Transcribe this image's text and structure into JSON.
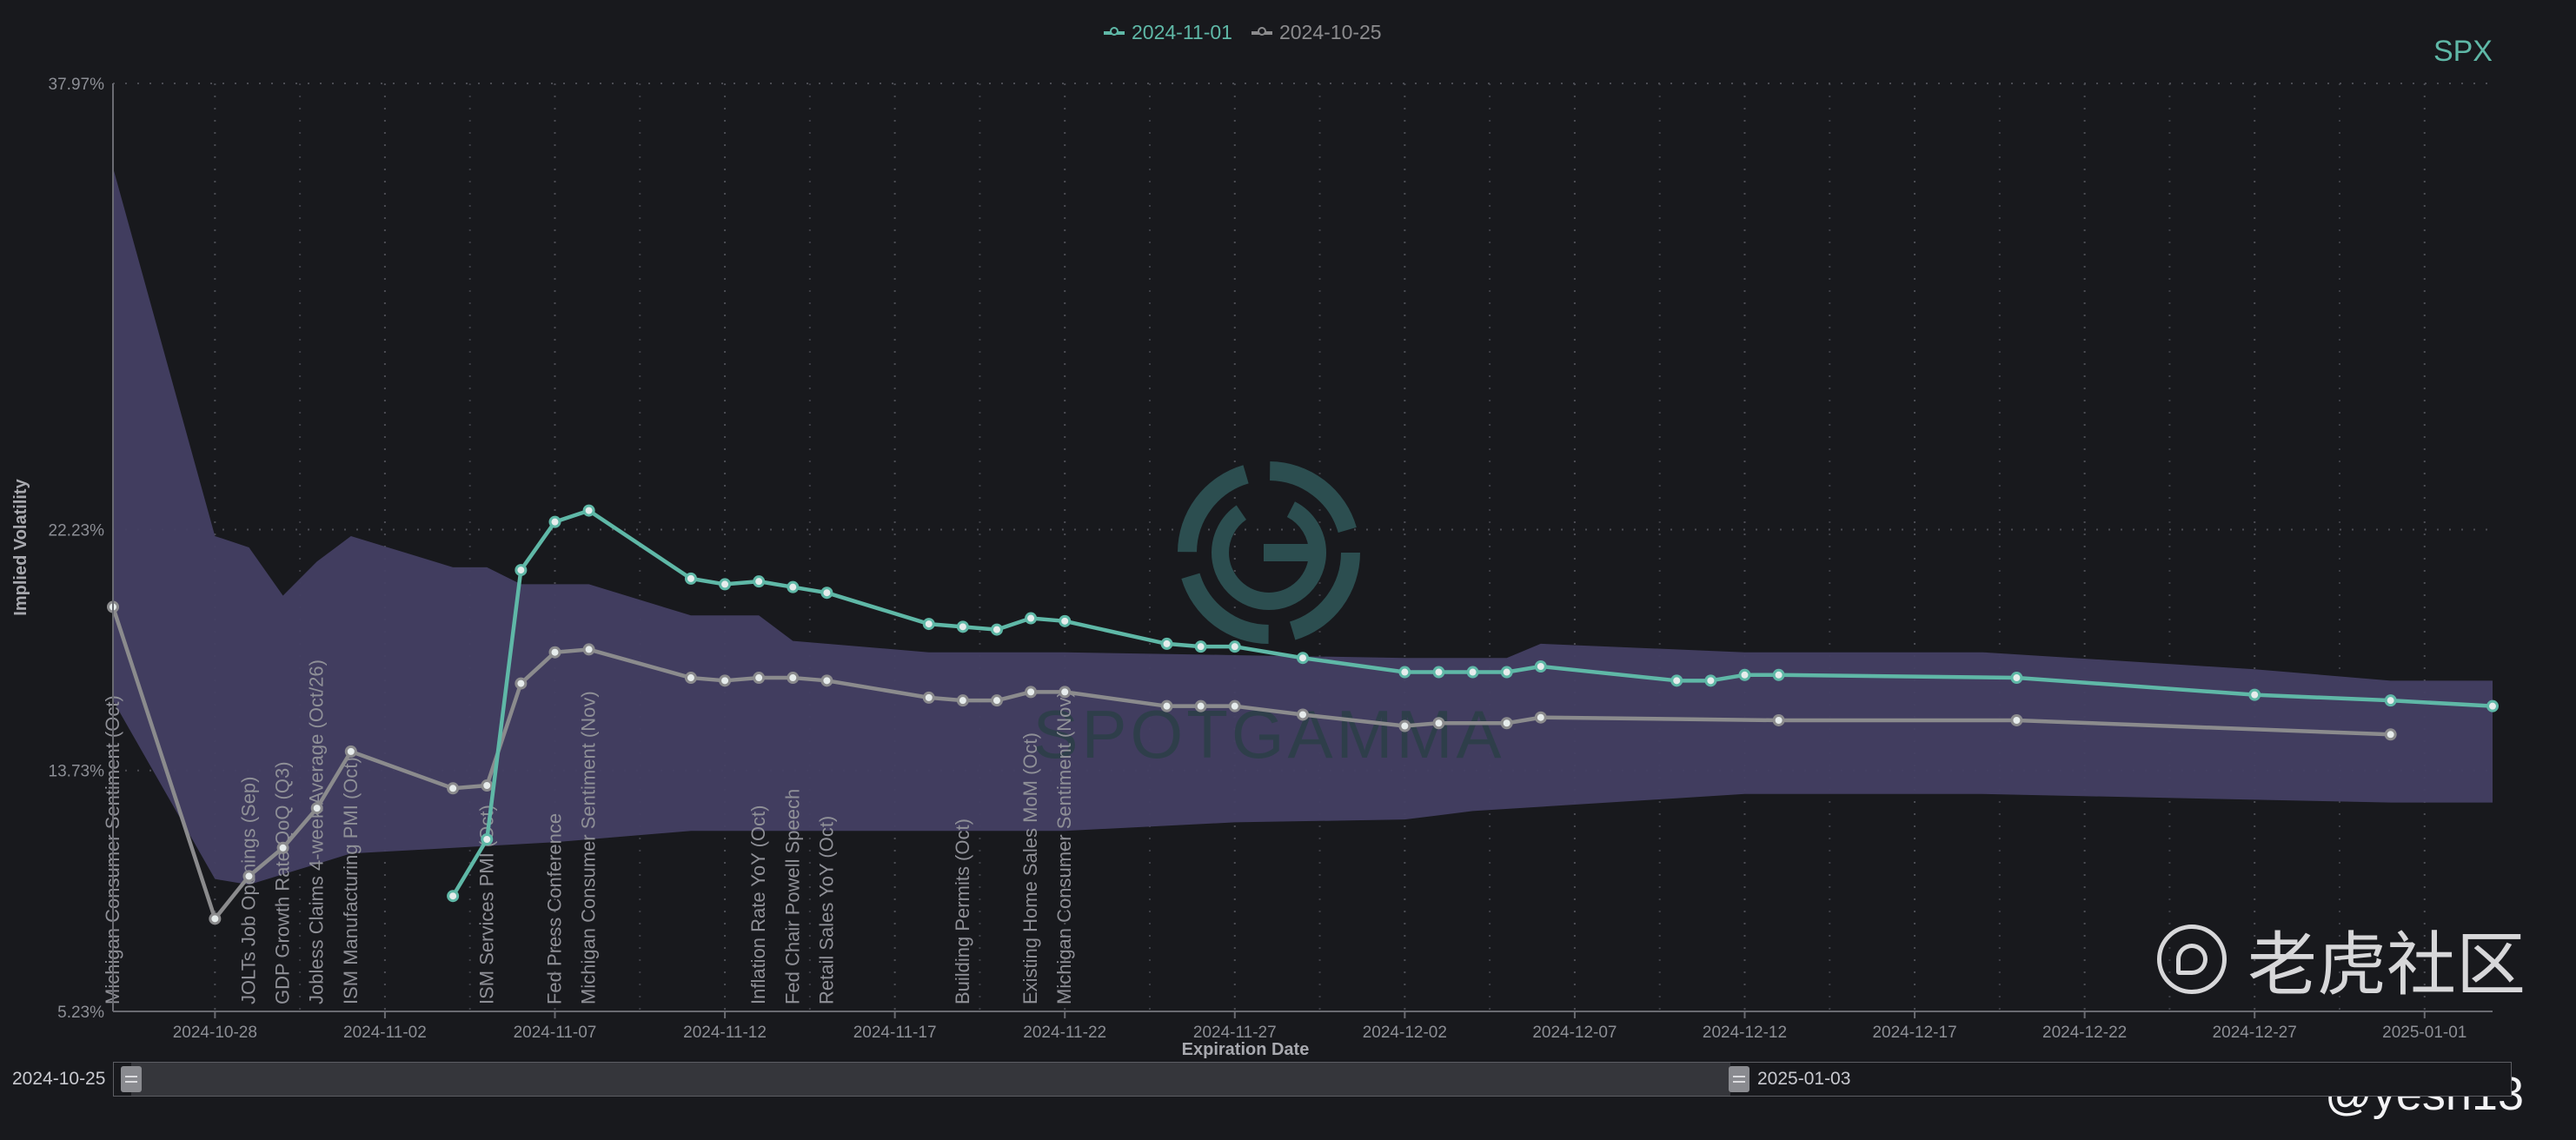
{
  "legend": [
    {
      "label": "2024-11-01",
      "color": "#5fb8a7"
    },
    {
      "label": "2024-10-25",
      "color": "#8b8b8d"
    }
  ],
  "ticker": "SPX",
  "navigator": {
    "start_label": "2024-10-25",
    "end_label": "2025-01-03",
    "window_start": "2024-10-25",
    "window_end": "2025-01-03"
  },
  "watermark": {
    "cn_text": "老虎社区",
    "handle": "@yesh13",
    "logo_text": "SPOTGAMMA"
  },
  "chart_data": {
    "type": "line",
    "xlabel": "Expiration Date",
    "ylabel": "Implied Volatility",
    "x_axis": {
      "type": "date",
      "min": "2024-10-25",
      "max": "2025-01-03",
      "ticks": [
        "2024-10-28",
        "2024-11-02",
        "2024-11-07",
        "2024-11-12",
        "2024-11-17",
        "2024-11-22",
        "2024-11-27",
        "2024-12-02",
        "2024-12-07",
        "2024-12-12",
        "2024-12-17",
        "2024-12-22",
        "2024-12-27",
        "2025-01-01"
      ]
    },
    "y_axis": {
      "min": 5.23,
      "max": 37.97,
      "ticks": [
        "5.23%",
        "13.73%",
        "22.23%",
        "37.97%"
      ]
    },
    "grid": true,
    "legend_position": "top-center",
    "band": {
      "color": "#433f63",
      "upper": [
        [
          "2024-10-25",
          35.0
        ],
        [
          "2024-10-28",
          22.0
        ],
        [
          "2024-10-29",
          21.6
        ],
        [
          "2024-10-30",
          19.9
        ],
        [
          "2024-10-31",
          21.1
        ],
        [
          "2024-11-01",
          22.0
        ],
        [
          "2024-11-04",
          20.9
        ],
        [
          "2024-11-05",
          20.9
        ],
        [
          "2024-11-06",
          20.3
        ],
        [
          "2024-11-08",
          20.3
        ],
        [
          "2024-11-11",
          19.2
        ],
        [
          "2024-11-13",
          19.2
        ],
        [
          "2024-11-14",
          18.3
        ],
        [
          "2024-11-18",
          17.9
        ],
        [
          "2024-11-22",
          17.9
        ],
        [
          "2024-11-27",
          17.8
        ],
        [
          "2024-12-02",
          17.7
        ],
        [
          "2024-12-05",
          17.7
        ],
        [
          "2024-12-06",
          18.2
        ],
        [
          "2024-12-12",
          17.9
        ],
        [
          "2024-12-19",
          17.9
        ],
        [
          "2024-12-27",
          17.3
        ],
        [
          "2024-12-31",
          16.9
        ],
        [
          "2025-01-03",
          16.9
        ]
      ],
      "lower": [
        [
          "2024-10-25",
          16.2
        ],
        [
          "2024-10-28",
          9.9
        ],
        [
          "2024-10-29",
          9.7
        ],
        [
          "2024-11-01",
          10.8
        ],
        [
          "2024-11-07",
          11.2
        ],
        [
          "2024-11-11",
          11.6
        ],
        [
          "2024-11-18",
          11.6
        ],
        [
          "2024-11-22",
          11.6
        ],
        [
          "2024-11-27",
          11.9
        ],
        [
          "2024-12-02",
          12.0
        ],
        [
          "2024-12-04",
          12.3
        ],
        [
          "2024-12-12",
          12.9
        ],
        [
          "2024-12-19",
          12.9
        ],
        [
          "2024-12-31",
          12.6
        ],
        [
          "2025-01-03",
          12.6
        ]
      ]
    },
    "series": [
      {
        "name": "2024-11-01",
        "color": "#5fb8a7",
        "points": [
          [
            "2024-11-04",
            9.3
          ],
          [
            "2024-11-05",
            11.3
          ],
          [
            "2024-11-06",
            20.8
          ],
          [
            "2024-11-07",
            22.5
          ],
          [
            "2024-11-08",
            22.9
          ],
          [
            "2024-11-11",
            20.5
          ],
          [
            "2024-11-12",
            20.3
          ],
          [
            "2024-11-13",
            20.4
          ],
          [
            "2024-11-14",
            20.2
          ],
          [
            "2024-11-15",
            20.0
          ],
          [
            "2024-11-18",
            18.9
          ],
          [
            "2024-11-19",
            18.8
          ],
          [
            "2024-11-20",
            18.7
          ],
          [
            "2024-11-21",
            19.1
          ],
          [
            "2024-11-22",
            19.0
          ],
          [
            "2024-11-25",
            18.2
          ],
          [
            "2024-11-26",
            18.1
          ],
          [
            "2024-11-27",
            18.1
          ],
          [
            "2024-11-29",
            17.7
          ],
          [
            "2024-12-02",
            17.2
          ],
          [
            "2024-12-03",
            17.2
          ],
          [
            "2024-12-04",
            17.2
          ],
          [
            "2024-12-05",
            17.2
          ],
          [
            "2024-12-06",
            17.4
          ],
          [
            "2024-12-10",
            16.9
          ],
          [
            "2024-12-11",
            16.9
          ],
          [
            "2024-12-12",
            17.1
          ],
          [
            "2024-12-13",
            17.1
          ],
          [
            "2024-12-20",
            17.0
          ],
          [
            "2024-12-27",
            16.4
          ],
          [
            "2024-12-31",
            16.2
          ],
          [
            "2025-01-03",
            16.0
          ]
        ]
      },
      {
        "name": "2024-10-25",
        "color": "#8b8b8d",
        "points": [
          [
            "2024-10-25",
            19.5
          ],
          [
            "2024-10-28",
            8.5
          ],
          [
            "2024-10-29",
            10.0
          ],
          [
            "2024-10-30",
            11.0
          ],
          [
            "2024-10-31",
            12.4
          ],
          [
            "2024-11-01",
            14.4
          ],
          [
            "2024-11-04",
            13.1
          ],
          [
            "2024-11-05",
            13.2
          ],
          [
            "2024-11-06",
            16.8
          ],
          [
            "2024-11-07",
            17.9
          ],
          [
            "2024-11-08",
            18.0
          ],
          [
            "2024-11-11",
            17.0
          ],
          [
            "2024-11-12",
            16.9
          ],
          [
            "2024-11-13",
            17.0
          ],
          [
            "2024-11-14",
            17.0
          ],
          [
            "2024-11-15",
            16.9
          ],
          [
            "2024-11-18",
            16.3
          ],
          [
            "2024-11-19",
            16.2
          ],
          [
            "2024-11-20",
            16.2
          ],
          [
            "2024-11-21",
            16.5
          ],
          [
            "2024-11-22",
            16.5
          ],
          [
            "2024-11-25",
            16.0
          ],
          [
            "2024-11-26",
            16.0
          ],
          [
            "2024-11-27",
            16.0
          ],
          [
            "2024-11-29",
            15.7
          ],
          [
            "2024-12-02",
            15.3
          ],
          [
            "2024-12-03",
            15.4
          ],
          [
            "2024-12-05",
            15.4
          ],
          [
            "2024-12-06",
            15.6
          ],
          [
            "2024-12-13",
            15.5
          ],
          [
            "2024-12-20",
            15.5
          ],
          [
            "2024-12-31",
            15.0
          ]
        ]
      }
    ],
    "annotations": [
      {
        "date": "2024-10-25",
        "label": "Michigan Consumer Sentiment (Oct)"
      },
      {
        "date": "2024-10-29",
        "label": "JOLTs Job Openings (Sep)"
      },
      {
        "date": "2024-10-30",
        "label": "GDP Growth Rate QoQ (Q3)"
      },
      {
        "date": "2024-10-31",
        "label": "Jobless Claims 4-week Average (Oct/26)"
      },
      {
        "date": "2024-11-01",
        "label": "ISM Manufacturing PMI (Oct)"
      },
      {
        "date": "2024-11-05",
        "label": "ISM Services PMI (Oct)"
      },
      {
        "date": "2024-11-07",
        "label": "Fed Press Conference"
      },
      {
        "date": "2024-11-08",
        "label": "Michigan Consumer Sentiment (Nov)"
      },
      {
        "date": "2024-11-13",
        "label": "Inflation Rate YoY (Oct)"
      },
      {
        "date": "2024-11-14",
        "label": "Fed Chair Powell Speech"
      },
      {
        "date": "2024-11-15",
        "label": "Retail Sales YoY (Oct)"
      },
      {
        "date": "2024-11-19",
        "label": "Building Permits (Oct)"
      },
      {
        "date": "2024-11-21",
        "label": "Existing Home Sales MoM (Oct)"
      },
      {
        "date": "2024-11-22",
        "label": "Michigan Consumer Sentiment (Nov)"
      }
    ]
  }
}
